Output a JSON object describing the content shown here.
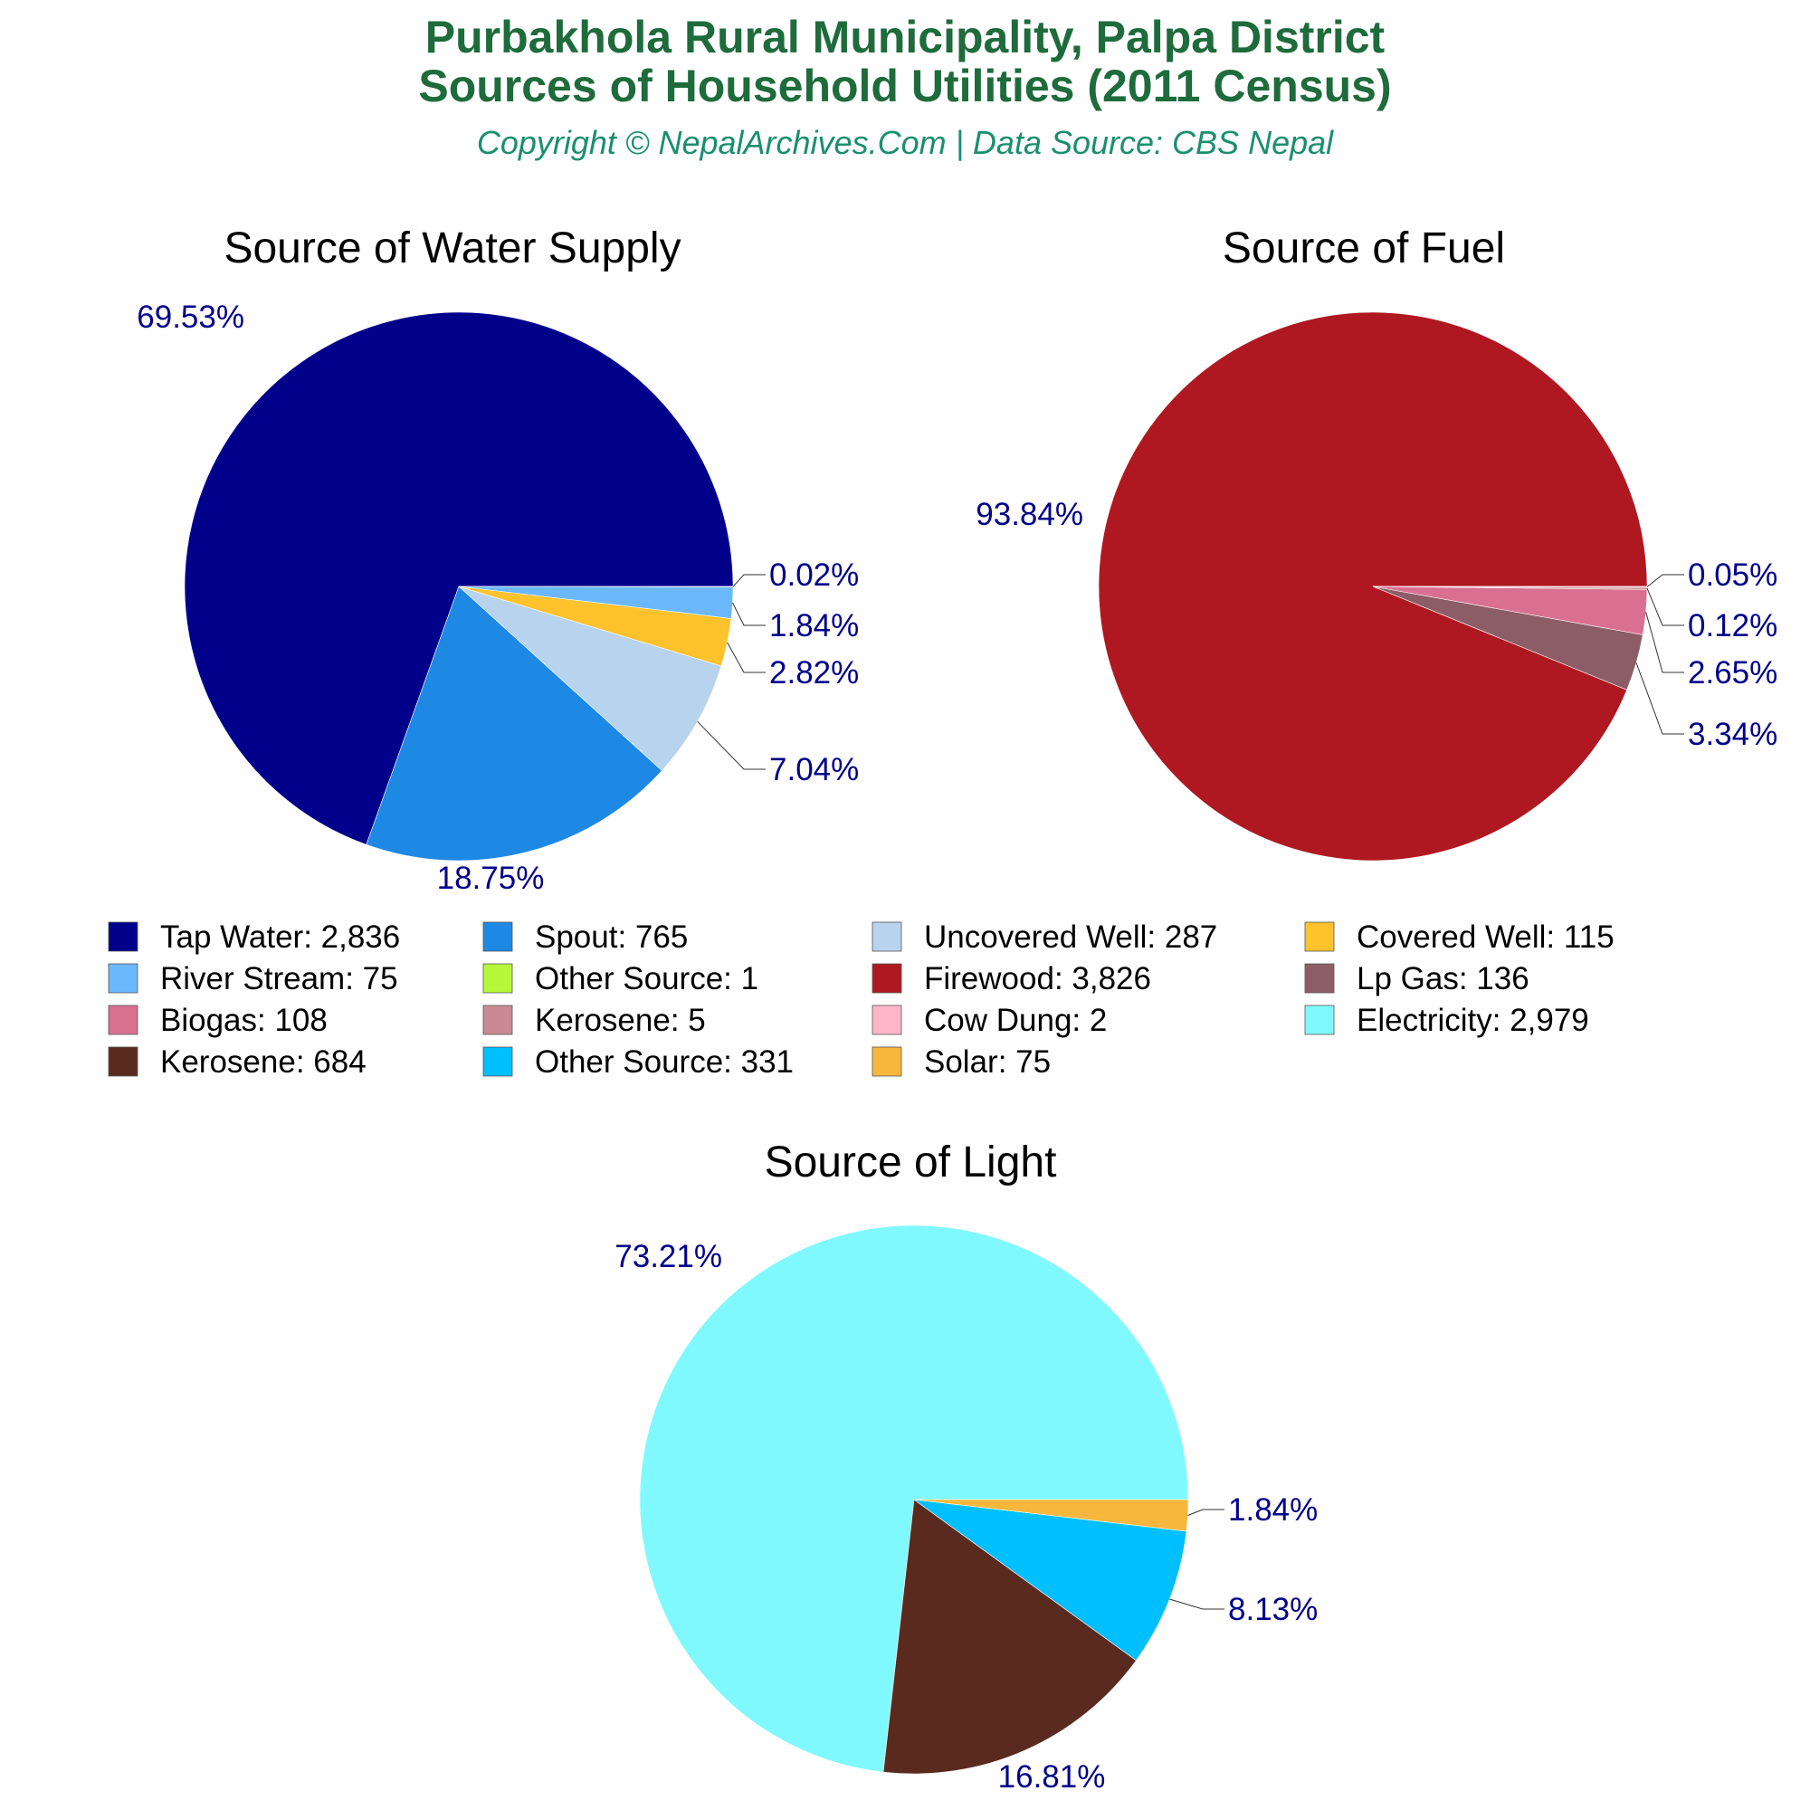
{
  "header": {
    "title_line1": "Purbakhola Rural Municipality, Palpa District",
    "title_line2": "Sources of Household Utilities (2011 Census)",
    "copyright": "Copyright © NepalArchives.Com | Data Source: CBS Nepal",
    "title_color": "#1e6b3c",
    "copyright_color": "#1a8f6e",
    "label_color": "#00008b"
  },
  "chart_data": [
    {
      "type": "pie",
      "title": "Source of Water Supply",
      "slices": [
        {
          "label": "Tap Water",
          "value": 2836,
          "display": "2,836",
          "pct": "69.53%",
          "color": "#00008b"
        },
        {
          "label": "Spout",
          "value": 765,
          "display": "765",
          "pct": "18.75%",
          "color": "#1e88e5"
        },
        {
          "label": "Uncovered Well",
          "value": 287,
          "display": "287",
          "pct": "7.04%",
          "color": "#b8d3ee"
        },
        {
          "label": "Covered Well",
          "value": 115,
          "display": "115",
          "pct": "2.82%",
          "color": "#fec22c"
        },
        {
          "label": "River Stream",
          "value": 75,
          "display": "75",
          "pct": "1.84%",
          "color": "#6bb8ff"
        },
        {
          "label": "Other Source",
          "value": 1,
          "display": "1",
          "pct": "0.02%",
          "color": "#b5f83a"
        }
      ]
    },
    {
      "type": "pie",
      "title": "Source of Fuel",
      "slices": [
        {
          "label": "Firewood",
          "value": 3826,
          "display": "3,826",
          "pct": "93.84%",
          "color": "#af1820"
        },
        {
          "label": "Lp Gas",
          "value": 136,
          "display": "136",
          "pct": "3.34%",
          "color": "#8c5d66"
        },
        {
          "label": "Biogas",
          "value": 108,
          "display": "108",
          "pct": "2.65%",
          "color": "#d97092"
        },
        {
          "label": "Kerosene",
          "value": 5,
          "display": "5",
          "pct": "0.12%",
          "color": "#c98a94"
        },
        {
          "label": "Cow Dung",
          "value": 2,
          "display": "2",
          "pct": "0.05%",
          "color": "#ffb6c8"
        }
      ]
    },
    {
      "type": "pie",
      "title": "Source of Light",
      "slices": [
        {
          "label": "Electricity",
          "value": 2979,
          "display": "2,979",
          "pct": "73.21%",
          "color": "#7ff9fe"
        },
        {
          "label": "Kerosene",
          "value": 684,
          "display": "684",
          "pct": "16.81%",
          "color": "#5a2a1f"
        },
        {
          "label": "Other Source",
          "value": 331,
          "display": "331",
          "pct": "8.13%",
          "color": "#00bfff"
        },
        {
          "label": "Solar",
          "value": 75,
          "display": "75",
          "pct": "1.84%",
          "color": "#f6b73c"
        }
      ]
    }
  ],
  "legend": {
    "columns": 4,
    "items": [
      {
        "text": "Tap Water: 2,836",
        "color": "#00008b"
      },
      {
        "text": "Spout: 765",
        "color": "#1e88e5"
      },
      {
        "text": "Uncovered Well: 287",
        "color": "#b8d3ee"
      },
      {
        "text": "Covered Well: 115",
        "color": "#fec22c"
      },
      {
        "text": "River Stream: 75",
        "color": "#6bb8ff"
      },
      {
        "text": "Other Source: 1",
        "color": "#b5f83a"
      },
      {
        "text": "Firewood: 3,826",
        "color": "#af1820"
      },
      {
        "text": "Lp Gas: 136",
        "color": "#8c5d66"
      },
      {
        "text": "Biogas: 108",
        "color": "#d97092"
      },
      {
        "text": "Kerosene: 5",
        "color": "#c98a94"
      },
      {
        "text": "Cow Dung: 2",
        "color": "#ffb6c8"
      },
      {
        "text": "Electricity: 2,979",
        "color": "#7ff9fe"
      },
      {
        "text": "Kerosene: 684",
        "color": "#5a2a1f"
      },
      {
        "text": "Other Source: 331",
        "color": "#00bfff"
      },
      {
        "text": "Solar: 75",
        "color": "#f6b73c"
      }
    ]
  }
}
